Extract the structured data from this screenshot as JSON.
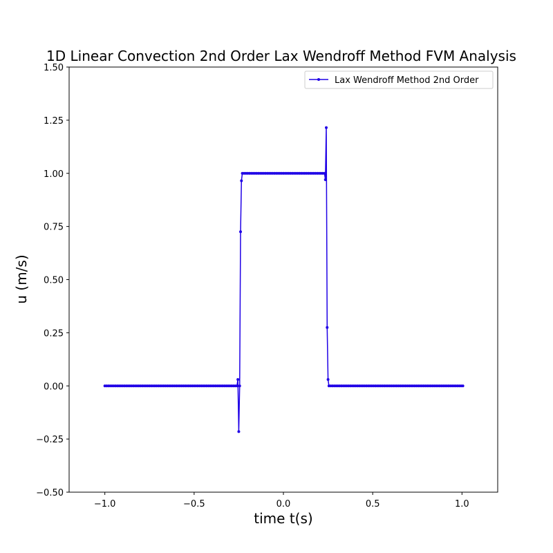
{
  "chart_data": {
    "type": "line",
    "title": "1D Linear Convection 2nd Order Lax Wendroff Method FVM Analysis",
    "xlabel": "time t(s)",
    "ylabel": "u (m/s)",
    "xlim": [
      -1.2,
      1.2
    ],
    "ylim": [
      -0.5,
      1.5
    ],
    "xticks": [
      -1.0,
      -0.5,
      0.0,
      0.5,
      1.0
    ],
    "xtick_labels": [
      "−1.0",
      "−0.5",
      "0.0",
      "0.5",
      "1.0"
    ],
    "yticks": [
      -0.5,
      -0.25,
      0.0,
      0.25,
      0.5,
      0.75,
      1.0,
      1.25,
      1.5
    ],
    "ytick_labels": [
      "−0.50",
      "−0.25",
      "0.00",
      "0.25",
      "0.50",
      "0.75",
      "1.00",
      "1.25",
      "1.50"
    ],
    "grid": false,
    "legend_position": "upper right",
    "series": [
      {
        "name": "Lax Wendroff Method 2nd Order",
        "color": "#1f00e6",
        "marker": "dot",
        "segments": [
          {
            "x_start": -1.0,
            "x_end": -0.26,
            "value": 0.0
          },
          {
            "x": -0.255,
            "value": 0.03
          },
          {
            "x": -0.25,
            "value": -0.215
          },
          {
            "x": -0.245,
            "value": 0.0
          },
          {
            "x": -0.24,
            "value": 0.725
          },
          {
            "x": -0.235,
            "value": 0.965
          },
          {
            "x_start": -0.23,
            "x_end": 0.23,
            "value": 1.0
          },
          {
            "x": 0.235,
            "value": 0.97
          },
          {
            "x": 0.24,
            "value": 1.215
          },
          {
            "x": 0.245,
            "value": 0.275
          },
          {
            "x": 0.25,
            "value": 0.03
          },
          {
            "x_start": 0.255,
            "x_end": 1.0,
            "value": 0.0
          }
        ]
      }
    ]
  }
}
